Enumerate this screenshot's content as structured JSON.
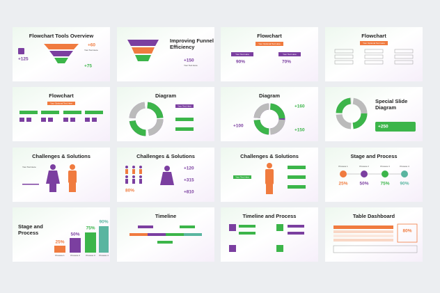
{
  "slides": [
    {
      "title": "Flowchart Tools Overview",
      "numbers": [
        "+60",
        "+125",
        "+75"
      ],
      "label": "Your Text Here"
    },
    {
      "title_lines": [
        "Improving Funnel",
        "Efficiency"
      ],
      "numbers": [
        "+150"
      ],
      "label": "Your Text Here"
    },
    {
      "title": "Flowchart",
      "top": "Your Optional Text Here",
      "boxes": [
        "Your Text Here",
        "Your Text Here"
      ],
      "numbers": [
        "90%",
        "70%"
      ]
    },
    {
      "title": "Flowchart",
      "top": "Your Optional Text Here"
    },
    {
      "title": "Flowchart",
      "top": "Your Optional Text Here"
    },
    {
      "title": "Diagram",
      "label": "Your Text Here"
    },
    {
      "title": "Diagram",
      "numbers": [
        "+160",
        "+100",
        "+150"
      ]
    },
    {
      "title_lines": [
        "Special Slide",
        "Diagram"
      ],
      "numbers": [
        "+250"
      ]
    },
    {
      "title": "Challenges & Solutions",
      "label": "Your Text Here"
    },
    {
      "title": "Challenges & Solutions",
      "numbers": [
        "80%",
        "+120",
        "+315",
        "+810"
      ]
    },
    {
      "title": "Challenges & Solutions",
      "label": "Your Text Here"
    },
    {
      "title": "Stage and Process",
      "steps": [
        "Process 1",
        "Process 2",
        "Process 3",
        "Process 4"
      ],
      "numbers": [
        "25%",
        "50%",
        "75%",
        "90%"
      ]
    },
    {
      "title_lines": [
        "Stage and",
        "Process"
      ],
      "steps": [
        "Process 1",
        "Process 2",
        "Process 3",
        "Process 4"
      ],
      "numbers": [
        "25%",
        "50%",
        "75%",
        "90%"
      ]
    },
    {
      "title": "Timeline"
    },
    {
      "title": "Timeline and Process"
    },
    {
      "title": "Table Dashboard",
      "numbers": [
        "80%"
      ]
    }
  ]
}
